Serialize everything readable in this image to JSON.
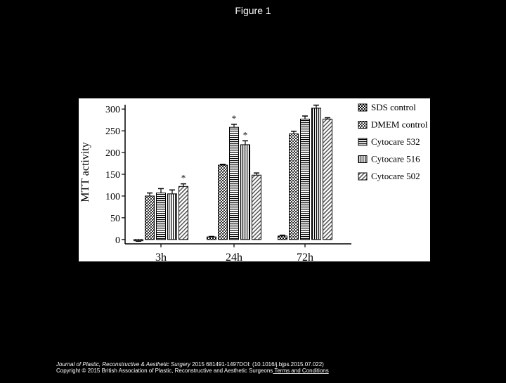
{
  "slide": {
    "title": "Figure 1",
    "citation_journal": "Journal of Plastic, Reconstructive & Aesthetic Surgery",
    "citation_rest": " 2015 681491-1497DOI: (10.1016/j.bjps.2015.07.022)",
    "copyright": "Copyright © 2015 British Association of Plastic, Reconstructive and Aesthetic Surgeons",
    "link": " Terms and Conditions"
  },
  "chart_data": {
    "type": "bar",
    "y_label": "MTT activity",
    "categories": [
      "3h",
      "24h",
      "72h"
    ],
    "series": [
      {
        "name": "SDS control",
        "color": "#222222",
        "values": [
          -3,
          6,
          8
        ],
        "errors": [
          1,
          1,
          2
        ]
      },
      {
        "name": "DMEM control",
        "color": "#555555",
        "values": [
          100,
          171,
          243
        ],
        "errors": [
          7,
          2,
          6
        ]
      },
      {
        "name": "Cytocare 532",
        "color": "#333333",
        "values": [
          107,
          258,
          277
        ],
        "errors": [
          10,
          7,
          7
        ]
      },
      {
        "name": "Cytocare 516",
        "color": "#333333",
        "values": [
          105,
          218,
          302
        ],
        "errors": [
          9,
          9,
          7
        ]
      },
      {
        "name": "Cytocare 502",
        "color": "#777777",
        "values": [
          122,
          148,
          277
        ],
        "errors": [
          6,
          5,
          3
        ]
      }
    ],
    "annotations": [
      "*",
      "*",
      "*"
    ],
    "ylim": [
      -10,
      310
    ],
    "yticks": [
      0,
      50,
      100,
      150,
      200,
      250,
      300
    ]
  }
}
